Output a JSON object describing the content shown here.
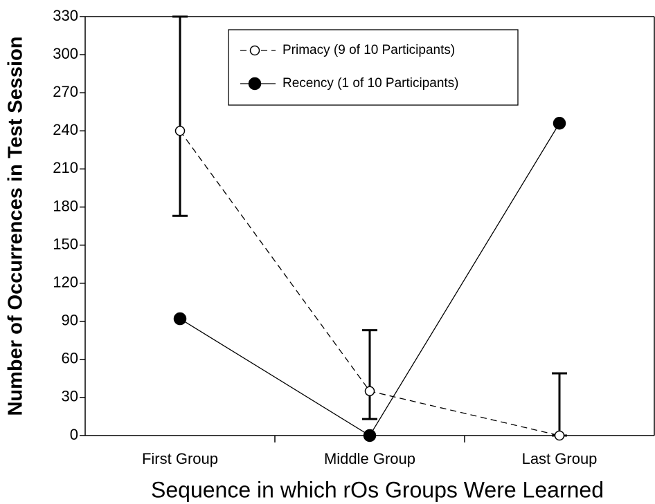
{
  "chart_data": {
    "type": "line",
    "x_label": "Sequence in which rOs Groups Were Learned",
    "y_label": "Number of Occurrences in Test Session",
    "categories": [
      "First Group",
      "Middle Group",
      "Last Group"
    ],
    "series": [
      {
        "name": "Primacy (9 of 10 Participants)",
        "color": "#000000",
        "dashed": true,
        "marker": "open",
        "values": [
          240,
          35,
          0
        ],
        "error_low": [
          173,
          13,
          0
        ],
        "error_high": [
          330,
          83,
          49
        ]
      },
      {
        "name": "Recency (1 of 10 Participants)",
        "color": "#000000",
        "dashed": false,
        "marker": "filled",
        "values": [
          92,
          0,
          246
        ]
      }
    ],
    "ylim": [
      0,
      330
    ],
    "yticks": [
      0,
      30,
      60,
      90,
      120,
      150,
      180,
      210,
      240,
      270,
      300,
      330
    ]
  }
}
